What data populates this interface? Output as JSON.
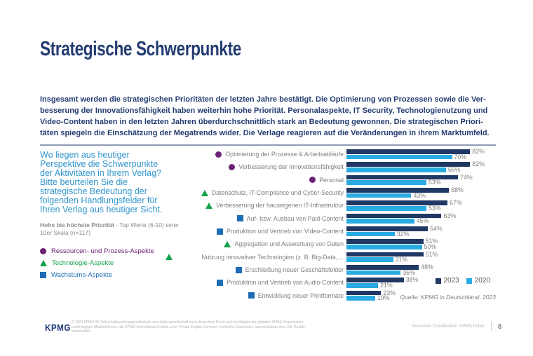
{
  "slide_title": "Strategische Schwerpunkte",
  "intro": {
    "lines": [
      "Insgesamt werden die strategischen Prioritäten der letzten Jahre bestätigt. Die Optimierung von Prozessen sowie die Ver-",
      "besserung der Innovationsfähigkeit haben weiterhin hohe Priorität. Personalaspekte, IT Security, Technologienutzung und",
      "Video-Content haben in den letzten Jahren überdurchschnittlich stark an Bedeutung gewonnen. Die strategischen Priori-",
      "täten spiegeln die Einschätzung der Megatrends wider. Die Verlage reagieren auf die Veränderungen in ihrem Marktumfeld."
    ]
  },
  "sidebar": {
    "question_lines": [
      "Wo liegen aus heutiger",
      "Perspektive die Schwerpunkte",
      "der Aktivitäten in Ihrem Verlag?",
      "Bitte beurteilen Sie die",
      "strategische Bedeutung der",
      "folgenden Handlungsfelder für",
      "Ihren Verlag aus heutiger Sicht."
    ],
    "note": {
      "bold": "Hohe bis höchste Priorität",
      "rest": " - Top Werte (6-10) einer 10er Skala (n=117)"
    },
    "legend": [
      {
        "label": "Ressourcen- und Prozess-Aspekte",
        "marker": "circle",
        "color": "#6d2077"
      },
      {
        "label": "Technologie-Aspekte",
        "marker": "triangle",
        "color": "#12a14b"
      },
      {
        "label": "Wachstums-Aspekte",
        "marker": "square",
        "color": "#1e6cb5"
      }
    ]
  },
  "chart_data": {
    "type": "bar",
    "orientation": "horizontal",
    "unit": "%",
    "xlim": [
      0,
      100
    ],
    "grid": false,
    "legend_position": "bottom-right",
    "categories": [
      "Optimierung der Prozesse & Arbeitsabläufe",
      "Verbesserung der Innovationsfähigkeit",
      "Personal",
      "Datenschutz, IT-Compliance und Cyber-Security",
      "Verbesserung der hauseigenen IT-Infrastruktur",
      "Auf- bzw. Ausbau von Paid-Content",
      "Produktion und Vertrieb von Video-Content",
      "Aggregation und Auswertung von Daten",
      "Nutzung innovativer Technologien (z. B. Big-Data,…",
      "Erschließung neuer Geschäftsfelder",
      "Produktion und Vertrieb von Audio-Content",
      "Entwicklung neuer Printformate"
    ],
    "category_markers": [
      "circle",
      "circle",
      "circle",
      "triangle",
      "triangle",
      "square",
      "square",
      "triangle",
      "triangle",
      "square",
      "square",
      "square"
    ],
    "detached_marker_indices": [
      8
    ],
    "marker_colors": {
      "circle": "#6d2077",
      "triangle": "#12a14b",
      "square": "#1e6cb5"
    },
    "series": [
      {
        "name": "2023",
        "color": "#1f3864",
        "values": [
          82,
          82,
          74,
          68,
          67,
          63,
          54,
          51,
          51,
          48,
          38,
          23
        ]
      },
      {
        "name": "2020",
        "color": "#29abe2",
        "values": [
          70,
          66,
          53,
          43,
          53,
          45,
          32,
          50,
          31,
          36,
          21,
          19
        ]
      }
    ]
  },
  "source": "Quelle: KPMG in Deutschland, 2023",
  "footer": {
    "logo": "KPMG",
    "disclaimer_lines": [
      "© 2023 KPMG AG Wirtschaftsprüfungsgesellschaft, eine Aktiengesellschaft nach deutschem Recht und ein Mitglied der globalen KPMG-Organisation",
      "unabhängiger Mitgliedsfirmen, die KPMG International Limited, einer Private English Company Limited by Guarantee, angeschlossen sind. Alle Rechte vorbehalten."
    ],
    "classification": "Document Classification: KPMG Public",
    "page": "8"
  }
}
